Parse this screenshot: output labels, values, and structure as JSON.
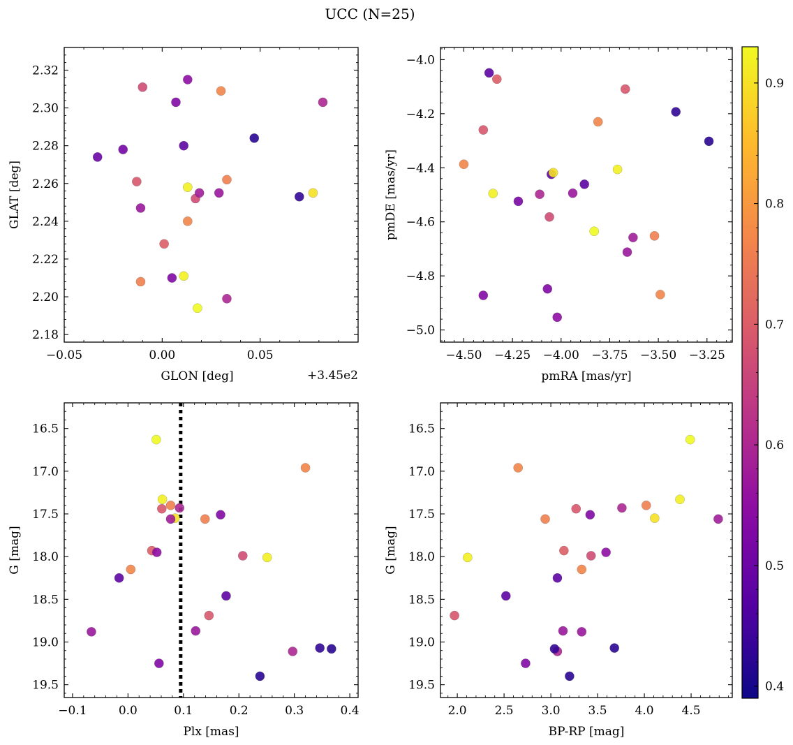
{
  "figure": {
    "title": "UCC (N=25)"
  },
  "colorbar": {
    "colormap": "plasma",
    "vmin": 0.39,
    "vmax": 0.93,
    "ticks": [
      0.4,
      0.5,
      0.6,
      0.7,
      0.8,
      0.9
    ],
    "tick_labels": [
      "0.4",
      "0.5",
      "0.6",
      "0.7",
      "0.8",
      "0.9"
    ]
  },
  "chart_data": [
    {
      "type": "scatter",
      "panel": "top-left",
      "xlabel": "GLON [deg]",
      "ylabel": "GLAT [deg]",
      "offset_text": "+3.45e2",
      "xlim": [
        -0.05,
        0.1
      ],
      "ylim": [
        2.176,
        2.332
      ],
      "x_ticks": [
        -0.05,
        0.0,
        0.05
      ],
      "x_tick_labels": [
        "−0.05",
        "0.00",
        "0.05"
      ],
      "y_ticks": [
        2.18,
        2.2,
        2.22,
        2.24,
        2.26,
        2.28,
        2.3,
        2.32
      ],
      "y_tick_labels": [
        "2.18",
        "2.20",
        "2.22",
        "2.24",
        "2.26",
        "2.28",
        "2.30",
        "2.32"
      ],
      "points": [
        {
          "x": -0.033,
          "y": 2.274,
          "c": 0.5
        },
        {
          "x": -0.02,
          "y": 2.278,
          "c": 0.51
        },
        {
          "x": -0.013,
          "y": 2.261,
          "c": 0.69
        },
        {
          "x": -0.011,
          "y": 2.247,
          "c": 0.57
        },
        {
          "x": -0.01,
          "y": 2.311,
          "c": 0.67
        },
        {
          "x": -0.011,
          "y": 2.208,
          "c": 0.76
        },
        {
          "x": 0.001,
          "y": 2.228,
          "c": 0.7
        },
        {
          "x": 0.005,
          "y": 2.21,
          "c": 0.53
        },
        {
          "x": 0.007,
          "y": 2.303,
          "c": 0.53
        },
        {
          "x": 0.011,
          "y": 2.28,
          "c": 0.48
        },
        {
          "x": 0.011,
          "y": 2.211,
          "c": 0.92
        },
        {
          "x": 0.013,
          "y": 2.315,
          "c": 0.55
        },
        {
          "x": 0.013,
          "y": 2.258,
          "c": 0.92
        },
        {
          "x": 0.013,
          "y": 2.24,
          "c": 0.77
        },
        {
          "x": 0.017,
          "y": 2.252,
          "c": 0.67
        },
        {
          "x": 0.018,
          "y": 2.194,
          "c": 0.93
        },
        {
          "x": 0.019,
          "y": 2.255,
          "c": 0.58
        },
        {
          "x": 0.029,
          "y": 2.255,
          "c": 0.57
        },
        {
          "x": 0.03,
          "y": 2.309,
          "c": 0.77
        },
        {
          "x": 0.033,
          "y": 2.262,
          "c": 0.76
        },
        {
          "x": 0.033,
          "y": 2.199,
          "c": 0.6
        },
        {
          "x": 0.047,
          "y": 2.284,
          "c": 0.42
        },
        {
          "x": 0.07,
          "y": 2.253,
          "c": 0.43
        },
        {
          "x": 0.077,
          "y": 2.255,
          "c": 0.9
        },
        {
          "x": 0.082,
          "y": 2.303,
          "c": 0.6
        }
      ]
    },
    {
      "type": "scatter",
      "panel": "top-right",
      "xlabel": "pmRA [mas/yr]",
      "ylabel": "pmDE [mas/yr]",
      "xlim": [
        -4.62,
        -3.12
      ],
      "ylim": [
        -5.045,
        -3.955
      ],
      "x_ticks": [
        -4.5,
        -4.25,
        -4.0,
        -3.75,
        -3.5,
        -3.25
      ],
      "x_tick_labels": [
        "−4.50",
        "−4.25",
        "−4.00",
        "−3.75",
        "−3.50",
        "−3.25"
      ],
      "y_ticks": [
        -5.0,
        -4.8,
        -4.6,
        -4.4,
        -4.2,
        -4.0
      ],
      "y_tick_labels": [
        "−5.0",
        "−4.8",
        "−4.6",
        "−4.4",
        "−4.2",
        "−4.0"
      ],
      "points": [
        {
          "x": -4.37,
          "y": -4.049,
          "c": 0.48
        },
        {
          "x": -4.33,
          "y": -4.072,
          "c": 0.7
        },
        {
          "x": -3.67,
          "y": -4.109,
          "c": 0.69
        },
        {
          "x": -3.41,
          "y": -4.193,
          "c": 0.43
        },
        {
          "x": -3.81,
          "y": -4.23,
          "c": 0.77
        },
        {
          "x": -4.4,
          "y": -4.26,
          "c": 0.69
        },
        {
          "x": -3.24,
          "y": -4.302,
          "c": 0.42
        },
        {
          "x": -4.5,
          "y": -4.387,
          "c": 0.77
        },
        {
          "x": -3.71,
          "y": -4.406,
          "c": 0.92
        },
        {
          "x": -4.05,
          "y": -4.424,
          "c": 0.48
        },
        {
          "x": -4.04,
          "y": -4.418,
          "c": 0.9
        },
        {
          "x": -3.88,
          "y": -4.461,
          "c": 0.48
        },
        {
          "x": -4.35,
          "y": -4.495,
          "c": 0.92
        },
        {
          "x": -4.11,
          "y": -4.498,
          "c": 0.6
        },
        {
          "x": -3.94,
          "y": -4.494,
          "c": 0.57
        },
        {
          "x": -4.22,
          "y": -4.524,
          "c": 0.52
        },
        {
          "x": -4.06,
          "y": -4.582,
          "c": 0.67
        },
        {
          "x": -3.83,
          "y": -4.635,
          "c": 0.93
        },
        {
          "x": -3.52,
          "y": -4.652,
          "c": 0.76
        },
        {
          "x": -3.63,
          "y": -4.658,
          "c": 0.58
        },
        {
          "x": -3.66,
          "y": -4.712,
          "c": 0.57
        },
        {
          "x": -4.07,
          "y": -4.848,
          "c": 0.53
        },
        {
          "x": -4.4,
          "y": -4.872,
          "c": 0.53
        },
        {
          "x": -3.49,
          "y": -4.869,
          "c": 0.77
        },
        {
          "x": -4.02,
          "y": -4.953,
          "c": 0.55
        }
      ]
    },
    {
      "type": "scatter",
      "panel": "bottom-left",
      "xlabel": "Plx [mas]",
      "ylabel": "G [mag]",
      "xlim": [
        -0.115,
        0.415
      ],
      "ylim": [
        19.65,
        16.2
      ],
      "y_inverted": true,
      "vline": 0.095,
      "x_ticks": [
        -0.1,
        0.0,
        0.1,
        0.2,
        0.3,
        0.4
      ],
      "x_tick_labels": [
        "−0.1",
        "0.0",
        "0.1",
        "0.2",
        "0.3",
        "0.4"
      ],
      "y_ticks": [
        16.5,
        17.0,
        17.5,
        18.0,
        18.5,
        19.0,
        19.5
      ],
      "y_tick_labels": [
        "16.5",
        "17.0",
        "17.5",
        "18.0",
        "18.5",
        "19.0",
        "19.5"
      ],
      "points": [
        {
          "x": 0.051,
          "y": 16.63,
          "c": 0.93
        },
        {
          "x": 0.32,
          "y": 16.96,
          "c": 0.77
        },
        {
          "x": 0.062,
          "y": 17.33,
          "c": 0.92
        },
        {
          "x": 0.077,
          "y": 17.4,
          "c": 0.76
        },
        {
          "x": 0.061,
          "y": 17.44,
          "c": 0.69
        },
        {
          "x": 0.093,
          "y": 17.43,
          "c": 0.6
        },
        {
          "x": 0.085,
          "y": 17.55,
          "c": 0.9
        },
        {
          "x": 0.077,
          "y": 17.56,
          "c": 0.58
        },
        {
          "x": 0.139,
          "y": 17.56,
          "c": 0.76
        },
        {
          "x": 0.167,
          "y": 17.51,
          "c": 0.53
        },
        {
          "x": 0.043,
          "y": 17.93,
          "c": 0.7
        },
        {
          "x": 0.052,
          "y": 17.95,
          "c": 0.55
        },
        {
          "x": 0.207,
          "y": 17.99,
          "c": 0.67
        },
        {
          "x": 0.251,
          "y": 18.01,
          "c": 0.92
        },
        {
          "x": 0.005,
          "y": 18.15,
          "c": 0.77
        },
        {
          "x": -0.016,
          "y": 18.25,
          "c": 0.48
        },
        {
          "x": 0.177,
          "y": 18.46,
          "c": 0.48
        },
        {
          "x": 0.146,
          "y": 18.69,
          "c": 0.69
        },
        {
          "x": 0.122,
          "y": 18.87,
          "c": 0.57
        },
        {
          "x": -0.066,
          "y": 18.88,
          "c": 0.57
        },
        {
          "x": 0.297,
          "y": 19.11,
          "c": 0.6
        },
        {
          "x": 0.346,
          "y": 19.07,
          "c": 0.43
        },
        {
          "x": 0.367,
          "y": 19.08,
          "c": 0.42
        },
        {
          "x": 0.056,
          "y": 19.25,
          "c": 0.53
        },
        {
          "x": 0.238,
          "y": 19.4,
          "c": 0.42
        }
      ]
    },
    {
      "type": "scatter",
      "panel": "bottom-right",
      "xlabel": "BP-RP [mag]",
      "ylabel": "G [mag]",
      "xlim": [
        1.82,
        4.94
      ],
      "ylim": [
        19.65,
        16.2
      ],
      "y_inverted": true,
      "x_ticks": [
        2.0,
        2.5,
        3.0,
        3.5,
        4.0,
        4.5
      ],
      "x_tick_labels": [
        "2.0",
        "2.5",
        "3.0",
        "3.5",
        "4.0",
        "4.5"
      ],
      "y_ticks": [
        16.5,
        17.0,
        17.5,
        18.0,
        18.5,
        19.0,
        19.5
      ],
      "y_tick_labels": [
        "16.5",
        "17.0",
        "17.5",
        "18.0",
        "18.5",
        "19.0",
        "19.5"
      ],
      "points": [
        {
          "x": 4.49,
          "y": 16.63,
          "c": 0.93
        },
        {
          "x": 2.65,
          "y": 16.96,
          "c": 0.77
        },
        {
          "x": 4.38,
          "y": 17.33,
          "c": 0.92
        },
        {
          "x": 4.02,
          "y": 17.4,
          "c": 0.76
        },
        {
          "x": 3.27,
          "y": 17.44,
          "c": 0.69
        },
        {
          "x": 3.76,
          "y": 17.43,
          "c": 0.6
        },
        {
          "x": 4.11,
          "y": 17.55,
          "c": 0.9
        },
        {
          "x": 4.79,
          "y": 17.56,
          "c": 0.58
        },
        {
          "x": 2.94,
          "y": 17.56,
          "c": 0.76
        },
        {
          "x": 3.42,
          "y": 17.51,
          "c": 0.53
        },
        {
          "x": 3.14,
          "y": 17.93,
          "c": 0.7
        },
        {
          "x": 3.59,
          "y": 17.95,
          "c": 0.55
        },
        {
          "x": 3.43,
          "y": 17.99,
          "c": 0.67
        },
        {
          "x": 2.11,
          "y": 18.01,
          "c": 0.92
        },
        {
          "x": 3.33,
          "y": 18.15,
          "c": 0.77
        },
        {
          "x": 3.07,
          "y": 18.25,
          "c": 0.48
        },
        {
          "x": 2.52,
          "y": 18.46,
          "c": 0.48
        },
        {
          "x": 1.97,
          "y": 18.69,
          "c": 0.69
        },
        {
          "x": 3.13,
          "y": 18.87,
          "c": 0.57
        },
        {
          "x": 3.33,
          "y": 18.88,
          "c": 0.57
        },
        {
          "x": 3.07,
          "y": 19.11,
          "c": 0.6
        },
        {
          "x": 3.04,
          "y": 19.08,
          "c": 0.43
        },
        {
          "x": 3.68,
          "y": 19.07,
          "c": 0.42
        },
        {
          "x": 2.73,
          "y": 19.25,
          "c": 0.53
        },
        {
          "x": 3.2,
          "y": 19.4,
          "c": 0.42
        }
      ]
    }
  ]
}
